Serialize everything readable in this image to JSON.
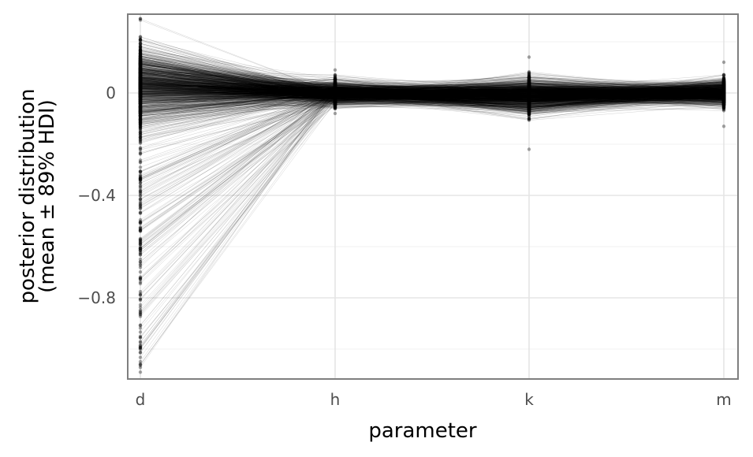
{
  "chart_data": {
    "type": "line",
    "title": "",
    "xlabel": "parameter",
    "ylabel": [
      "posterior distribution",
      "(mean ± 89% HDI)"
    ],
    "categories": [
      "d",
      "h",
      "k",
      "m"
    ],
    "ylim": [
      -1.12,
      0.31
    ],
    "yticks": [
      0,
      -0.4,
      -0.8
    ],
    "ytick_labels": [
      "0",
      "−0.4",
      "−0.8"
    ],
    "grid": true,
    "legend": "none",
    "series_note": "many posterior draws per category connected across categories",
    "spread": {
      "d": {
        "center": 0.04,
        "sd": 0.07,
        "min": -1.09,
        "max": 0.29
      },
      "h": {
        "center": 0.0,
        "sd": 0.022,
        "min": -0.08,
        "max": 0.09
      },
      "k": {
        "center": -0.01,
        "sd": 0.03,
        "min": -0.22,
        "max": 0.14
      },
      "m": {
        "center": 0.0,
        "sd": 0.022,
        "min": -0.13,
        "max": 0.12
      }
    },
    "draws": 1200,
    "colors": {
      "line": "#000000",
      "grid": "#e5e5e5",
      "frame": "#7f7f7f"
    }
  }
}
